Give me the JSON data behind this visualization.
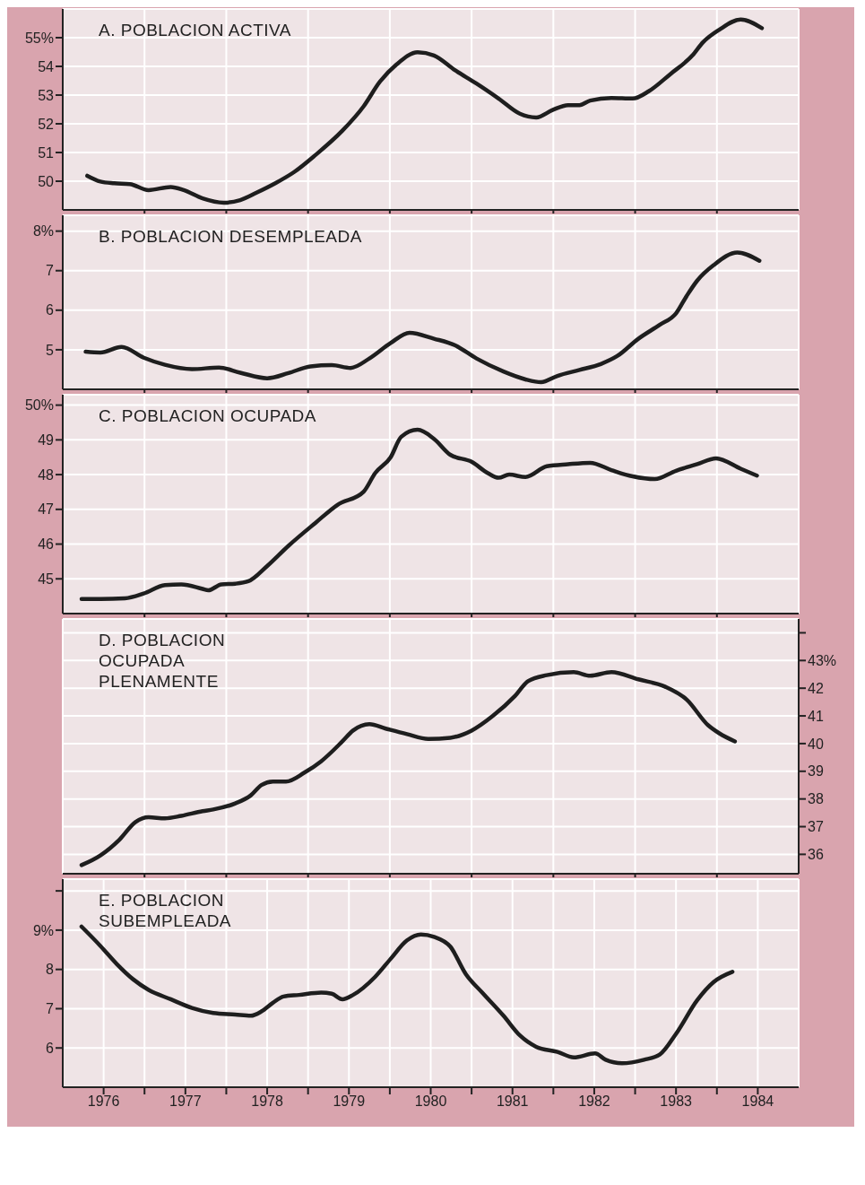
{
  "chart_data": [
    {
      "type": "line",
      "title": "A. POBLACION ACTIVA",
      "grid": true,
      "tick_labels": "y",
      "x": [
        1976.3,
        1976.46,
        1976.63,
        1976.82,
        1977.05,
        1977.32,
        1977.48,
        1977.71,
        1977.97,
        1978.17,
        1978.37,
        1978.6,
        1978.83,
        1979.09,
        1979.42,
        1979.68,
        1979.88,
        1980.08,
        1980.34,
        1980.54,
        1980.8,
        1981.06,
        1981.33,
        1981.59,
        1981.79,
        1981.99,
        1982.18,
        1982.32,
        1982.45,
        1982.71,
        1982.97,
        1983.17,
        1983.43,
        1983.7,
        1983.83,
        1984.03,
        1984.29,
        1984.55
      ],
      "series": [
        {
          "color": "#1e1e1e",
          "values": [
            50.19,
            49.99,
            49.93,
            49.9,
            49.69,
            49.8,
            49.69,
            49.4,
            49.25,
            49.34,
            49.6,
            49.93,
            50.32,
            50.91,
            51.76,
            52.61,
            53.47,
            54.06,
            54.49,
            54.38,
            53.86,
            53.4,
            52.88,
            52.35,
            52.22,
            52.48,
            52.65,
            52.65,
            52.81,
            52.9,
            52.88,
            53.14,
            53.73,
            54.38,
            54.84,
            55.28,
            55.63,
            55.33
          ]
        }
      ],
      "xlim": [
        1976,
        1985
      ],
      "xticks": [
        1977,
        1978,
        1979,
        1980,
        1981,
        1982,
        1983,
        1984
      ],
      "ylim": [
        49,
        56
      ],
      "yticks": [
        50,
        51,
        52,
        53,
        54,
        {
          "value": 55,
          "label": "55%"
        }
      ]
    },
    {
      "type": "line",
      "title": "B. POBLACION DESEMPLEADA",
      "grid": true,
      "tick_labels": "y",
      "x": [
        1976.28,
        1976.46,
        1976.72,
        1976.99,
        1977.25,
        1977.58,
        1977.91,
        1978.17,
        1978.5,
        1978.76,
        1979.03,
        1979.29,
        1979.52,
        1979.75,
        1980.01,
        1980.24,
        1980.54,
        1980.8,
        1981.06,
        1981.39,
        1981.66,
        1981.85,
        1982.05,
        1982.32,
        1982.58,
        1982.78,
        1983.04,
        1983.3,
        1983.5,
        1983.63,
        1983.76,
        1983.96,
        1984.25,
        1984.52
      ],
      "series": [
        {
          "color": "#1e1e1e",
          "values": [
            4.95,
            4.93,
            5.07,
            4.8,
            4.62,
            4.51,
            4.55,
            4.42,
            4.28,
            4.41,
            4.58,
            4.61,
            4.54,
            4.78,
            5.17,
            5.43,
            5.28,
            5.11,
            4.78,
            4.45,
            4.25,
            4.18,
            4.34,
            4.49,
            4.64,
            4.84,
            5.28,
            5.63,
            5.92,
            6.36,
            6.75,
            7.14,
            7.46,
            7.25
          ]
        }
      ],
      "xlim": [
        1976,
        1985
      ],
      "xticks": [
        1977,
        1978,
        1979,
        1980,
        1981,
        1982,
        1983,
        1984
      ],
      "ylim": [
        4,
        8.4
      ],
      "yticks": [
        5,
        6,
        7,
        {
          "value": 8,
          "label": "8%"
        }
      ]
    },
    {
      "type": "line",
      "title": "C. POBLACION OCUPADA",
      "grid": true,
      "tick_labels": "y",
      "x": [
        1976.23,
        1976.46,
        1976.76,
        1976.99,
        1977.25,
        1977.45,
        1977.71,
        1977.78,
        1977.94,
        1978.11,
        1978.27,
        1978.5,
        1978.76,
        1979.09,
        1979.36,
        1979.68,
        1979.82,
        1980.01,
        1980.14,
        1980.34,
        1980.54,
        1980.74,
        1981.0,
        1981.2,
        1981.33,
        1981.46,
        1981.66,
        1981.92,
        1982.18,
        1982.45,
        1982.71,
        1982.97,
        1983.24,
        1983.5,
        1983.76,
        1983.99,
        1984.29,
        1984.49
      ],
      "series": [
        {
          "color": "#1e1e1e",
          "values": [
            44.42,
            44.42,
            44.44,
            44.58,
            44.82,
            44.84,
            44.71,
            44.67,
            44.84,
            44.86,
            44.93,
            45.37,
            45.95,
            46.61,
            47.13,
            47.51,
            48.04,
            48.5,
            49.09,
            49.29,
            49.03,
            48.57,
            48.37,
            48.04,
            47.91,
            48.0,
            47.93,
            48.24,
            48.3,
            48.34,
            48.13,
            47.95,
            47.87,
            48.11,
            48.3,
            48.47,
            48.17,
            47.97
          ]
        }
      ],
      "xlim": [
        1976,
        1985
      ],
      "xticks": [
        1977,
        1978,
        1979,
        1980,
        1981,
        1982,
        1983,
        1984
      ],
      "ylim": [
        44,
        50.3
      ],
      "yticks": [
        45,
        46,
        47,
        48,
        49,
        {
          "value": 50,
          "label": "50%"
        }
      ]
    },
    {
      "type": "line",
      "title": "D. POBLACION\nOCUPADA\nPLENAMENTE",
      "grid": true,
      "tick_labels": "y",
      "x": [
        1976.23,
        1976.46,
        1976.69,
        1976.89,
        1977.05,
        1977.25,
        1977.45,
        1977.71,
        1977.84,
        1978.11,
        1978.3,
        1978.43,
        1978.57,
        1978.73,
        1978.96,
        1979.16,
        1979.42,
        1979.55,
        1979.75,
        1979.95,
        1980.21,
        1980.47,
        1980.74,
        1981.0,
        1981.26,
        1981.53,
        1981.69,
        1981.92,
        1982.25,
        1982.45,
        1982.71,
        1983.04,
        1983.37,
        1983.63,
        1983.89,
        1984.03,
        1984.22
      ],
      "series": [
        {
          "color": "#1e1e1e",
          "axis": "y2",
          "values": [
            35.61,
            35.96,
            36.52,
            37.17,
            37.34,
            37.3,
            37.39,
            37.56,
            37.62,
            37.84,
            38.13,
            38.5,
            38.63,
            38.63,
            38.96,
            39.36,
            40.08,
            40.47,
            40.7,
            40.54,
            40.34,
            40.17,
            40.21,
            40.47,
            41.0,
            41.72,
            42.25,
            42.47,
            42.58,
            42.45,
            42.58,
            42.32,
            42.05,
            41.59,
            40.67,
            40.37,
            40.08
          ]
        }
      ],
      "xlim": [
        1976,
        1985
      ],
      "xticks": [
        1977,
        1978,
        1979,
        1980,
        1981,
        1982,
        1983,
        1984
      ],
      "y2lim": [
        35.3,
        44.5
      ],
      "y2ticks": [
        36,
        37,
        38,
        39,
        40,
        41,
        42,
        {
          "value": 43,
          "label": "43%"
        },
        {
          "value": 44,
          "label": null
        }
      ]
    },
    {
      "type": "line",
      "title": "E. POBLACION\nSUBEMPLEADA",
      "grid": true,
      "x": [
        1976.23,
        1976.46,
        1976.66,
        1976.86,
        1977.05,
        1977.32,
        1977.58,
        1977.84,
        1978.11,
        1978.3,
        1978.43,
        1978.57,
        1978.7,
        1978.89,
        1979.16,
        1979.29,
        1979.42,
        1979.55,
        1979.82,
        1980.01,
        1980.21,
        1980.38,
        1980.54,
        1980.74,
        1980.93,
        1981.13,
        1981.39,
        1981.59,
        1981.79,
        1982.05,
        1982.25,
        1982.51,
        1982.64,
        1982.84,
        1983.11,
        1983.3,
        1983.5,
        1983.76,
        1983.96,
        1984.19
      ],
      "series": [
        {
          "color": "#1e1e1e",
          "values": [
            9.09,
            8.6,
            8.14,
            7.75,
            7.48,
            7.24,
            7.02,
            6.89,
            6.85,
            6.82,
            6.93,
            7.15,
            7.31,
            7.35,
            7.41,
            7.38,
            7.24,
            7.35,
            7.81,
            8.27,
            8.74,
            8.89,
            8.83,
            8.58,
            7.88,
            7.41,
            6.82,
            6.32,
            6.03,
            5.9,
            5.76,
            5.86,
            5.7,
            5.61,
            5.7,
            5.83,
            6.36,
            7.22,
            7.68,
            7.94
          ]
        }
      ],
      "xlim": [
        1976,
        1985
      ],
      "xticks": [
        {
          "value": 1976.5,
          "label": "1976"
        },
        {
          "value": 1977,
          "label": null
        },
        {
          "value": 1977.5,
          "label": "1977"
        },
        {
          "value": 1978,
          "label": null
        },
        {
          "value": 1978.5,
          "label": "1978"
        },
        {
          "value": 1979,
          "label": null
        },
        {
          "value": 1979.5,
          "label": "1979"
        },
        {
          "value": 1980,
          "label": null
        },
        {
          "value": 1980.5,
          "label": "1980"
        },
        {
          "value": 1981,
          "label": null
        },
        {
          "value": 1981.5,
          "label": "1981"
        },
        {
          "value": 1982,
          "label": null
        },
        {
          "value": 1982.5,
          "label": "1982"
        },
        {
          "value": 1983,
          "label": null
        },
        {
          "value": 1983.5,
          "label": "1983"
        },
        {
          "value": 1984,
          "label": null
        },
        {
          "value": 1984.5,
          "label": "1984"
        }
      ],
      "ylim": [
        5,
        10.3
      ],
      "yticks": [
        6,
        7,
        8,
        {
          "value": 9,
          "label": "9%"
        },
        {
          "value": 10,
          "label": null
        }
      ]
    }
  ]
}
